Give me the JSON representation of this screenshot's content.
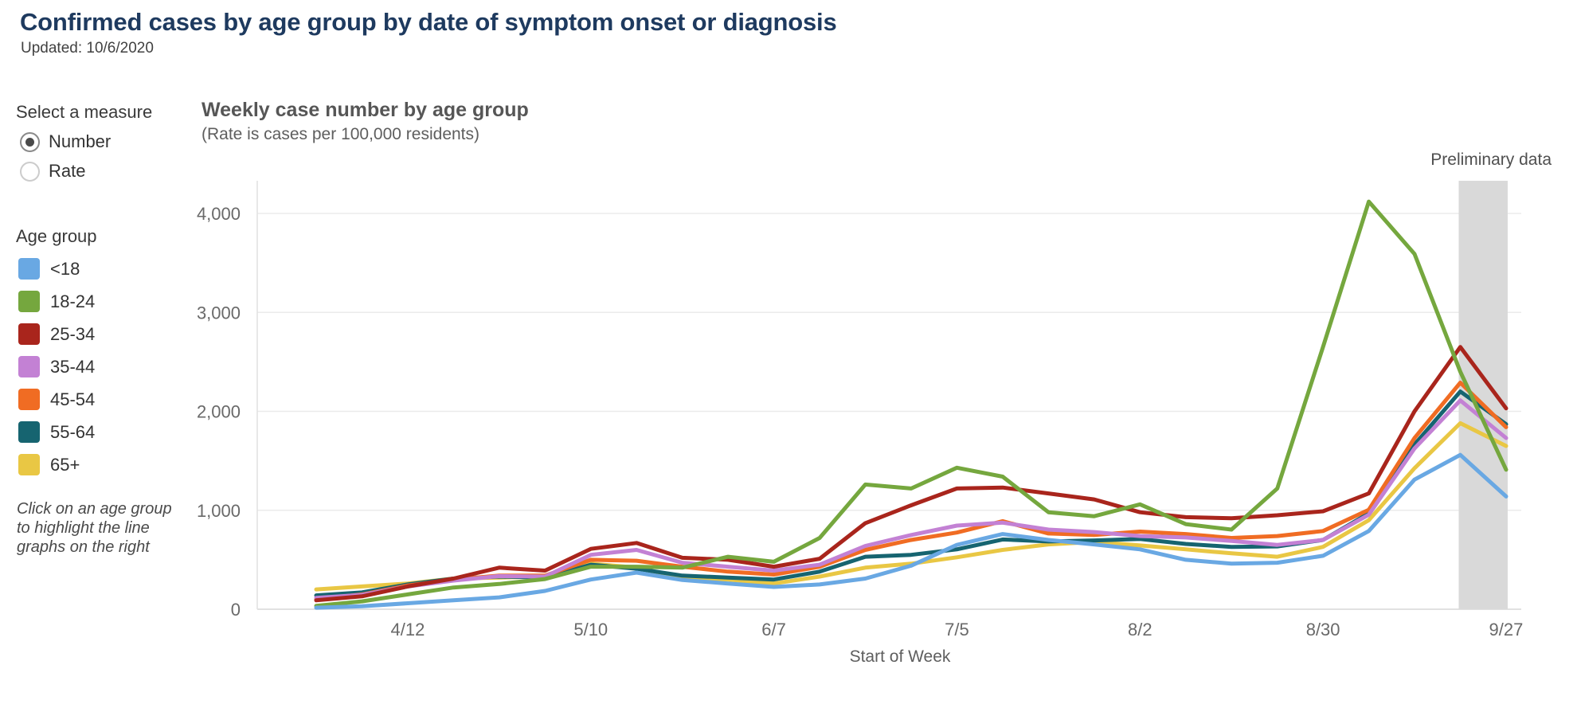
{
  "header": {
    "title": "Confirmed cases by age group by date of symptom onset or diagnosis",
    "updated": "Updated: 10/6/2020"
  },
  "sidebar": {
    "measure": {
      "label": "Select a measure",
      "options": [
        {
          "label": "Number",
          "selected": true
        },
        {
          "label": "Rate",
          "selected": false
        }
      ]
    },
    "age_group_label": "Age group",
    "note": "Click on an age group to highlight the line graphs on the right"
  },
  "chart": {
    "title": "Weekly case number by age group",
    "subtitle": "(Rate is cases per 100,000 residents)",
    "preliminary_label": "Preliminary data"
  },
  "chart_data": {
    "type": "line",
    "title": "Weekly case number by age group",
    "subtitle": "(Rate is cases per 100,000 residents)",
    "xlabel": "Start of Week",
    "ylabel": "",
    "ylim": [
      0,
      4330
    ],
    "grid": true,
    "legend_position": "left",
    "categories": [
      "3/29",
      "4/5",
      "4/12",
      "4/19",
      "4/26",
      "5/3",
      "5/10",
      "5/17",
      "5/24",
      "5/31",
      "6/7",
      "6/14",
      "6/21",
      "6/28",
      "7/5",
      "7/12",
      "7/19",
      "7/26",
      "8/2",
      "8/9",
      "8/16",
      "8/23",
      "8/30",
      "9/6",
      "9/13",
      "9/20",
      "9/27"
    ],
    "x_tick_labels": [
      {
        "label": "4/12",
        "index": 2
      },
      {
        "label": "5/10",
        "index": 6
      },
      {
        "label": "6/7",
        "index": 10
      },
      {
        "label": "7/5",
        "index": 14
      },
      {
        "label": "8/2",
        "index": 18
      },
      {
        "label": "8/30",
        "index": 22
      },
      {
        "label": "9/27",
        "index": 26
      }
    ],
    "y_ticks": [
      {
        "label": "0",
        "value": 0
      },
      {
        "label": "1,000",
        "value": 1000
      },
      {
        "label": "2,000",
        "value": 2000
      },
      {
        "label": "3,000",
        "value": 3000
      },
      {
        "label": "4,000",
        "value": 4000
      }
    ],
    "preliminary_band": {
      "label": "Preliminary data",
      "weeks": [
        "9/20",
        "9/27"
      ]
    },
    "series": [
      {
        "name": "<18",
        "color": "#69A8E3",
        "values": [
          15,
          30,
          60,
          90,
          120,
          185,
          300,
          370,
          295,
          260,
          225,
          250,
          310,
          440,
          650,
          760,
          700,
          655,
          605,
          500,
          460,
          470,
          540,
          790,
          1310,
          1560,
          1140
        ]
      },
      {
        "name": "18-24",
        "color": "#75A73E",
        "values": [
          35,
          80,
          150,
          220,
          255,
          305,
          430,
          430,
          420,
          530,
          480,
          720,
          1260,
          1220,
          1430,
          1340,
          980,
          940,
          1060,
          860,
          805,
          1220,
          2650,
          4120,
          3590,
          2400,
          1410
        ]
      },
      {
        "name": "25-34",
        "color": "#A9251C",
        "values": [
          90,
          130,
          230,
          310,
          420,
          390,
          610,
          670,
          520,
          500,
          430,
          510,
          870,
          1050,
          1220,
          1230,
          1170,
          1110,
          980,
          930,
          920,
          950,
          990,
          1170,
          2000,
          2650,
          2030
        ]
      },
      {
        "name": "35-44",
        "color": "#C381D4",
        "values": [
          115,
          145,
          230,
          290,
          335,
          330,
          550,
          600,
          470,
          430,
          390,
          450,
          640,
          750,
          845,
          875,
          805,
          780,
          740,
          725,
          690,
          650,
          700,
          955,
          1625,
          2110,
          1730
        ]
      },
      {
        "name": "45-54",
        "color": "#F06C23",
        "values": [
          100,
          150,
          240,
          300,
          340,
          340,
          500,
          490,
          430,
          380,
          350,
          430,
          600,
          700,
          775,
          890,
          765,
          750,
          785,
          760,
          720,
          740,
          790,
          1005,
          1730,
          2290,
          1840
        ]
      },
      {
        "name": "55-64",
        "color": "#166470",
        "values": [
          140,
          170,
          250,
          310,
          330,
          320,
          450,
          410,
          340,
          320,
          300,
          380,
          530,
          550,
          605,
          705,
          685,
          695,
          710,
          660,
          630,
          635,
          700,
          970,
          1665,
          2200,
          1870
        ]
      },
      {
        "name": "65+",
        "color": "#E9C744",
        "values": [
          200,
          230,
          260,
          310,
          320,
          330,
          460,
          420,
          310,
          300,
          260,
          330,
          420,
          460,
          525,
          600,
          655,
          680,
          645,
          605,
          565,
          530,
          630,
          900,
          1425,
          1880,
          1650
        ]
      }
    ]
  }
}
